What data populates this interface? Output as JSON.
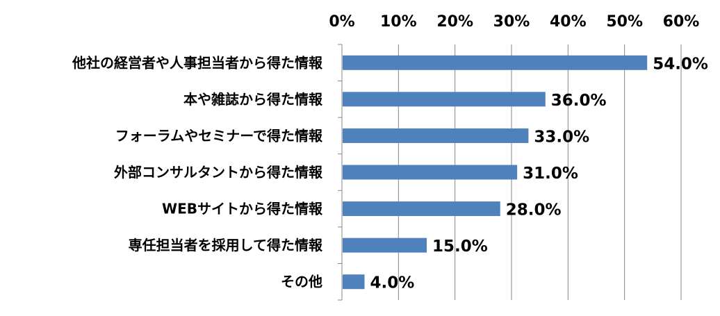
{
  "chart_data": {
    "type": "bar",
    "orientation": "horizontal",
    "categories": [
      "他社の経営者や人事担当者から得た情報",
      "本や雑誌から得た情報",
      "フォーラムやセミナーで得た情報",
      "外部コンサルタントから得た情報",
      "WEBサイトから得た情報",
      "専任担当者を採用して得た情報",
      "その他"
    ],
    "values": [
      54.0,
      36.0,
      33.0,
      31.0,
      28.0,
      15.0,
      4.0
    ],
    "data_labels": [
      "54.0%",
      "36.0%",
      "33.0%",
      "31.0%",
      "28.0%",
      "15.0%",
      "4.0%"
    ],
    "x_ticks": [
      "0%",
      "10%",
      "20%",
      "30%",
      "40%",
      "50%",
      "60%"
    ],
    "xlim": [
      0,
      60
    ],
    "x_axis_position": "top",
    "grid": true,
    "bar_color": "#4f81bd",
    "grid_color": "#868686",
    "title": "",
    "xlabel": "",
    "ylabel": ""
  }
}
